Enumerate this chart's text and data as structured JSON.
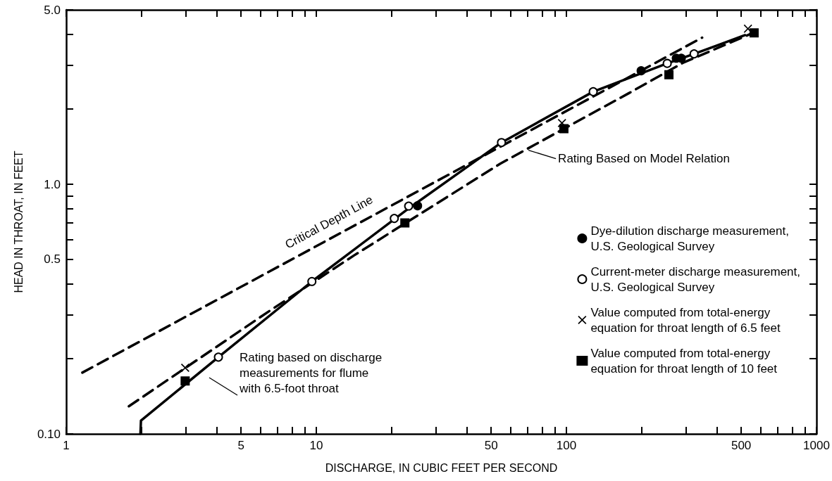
{
  "chart_data": {
    "type": "scatter",
    "xlabel": "DISCHARGE, IN CUBIC FEET PER SECOND",
    "ylabel": "HEAD IN THROAT, IN FEET",
    "log": "xy",
    "xlim": [
      1,
      1000
    ],
    "ylim": [
      0.1,
      5
    ],
    "xticks": [
      1,
      {
        "value": 2,
        "label": null
      },
      {
        "value": 3,
        "label": null
      },
      {
        "value": 4,
        "label": null
      },
      5,
      {
        "value": 6,
        "label": null
      },
      {
        "value": 7,
        "label": null
      },
      {
        "value": 8,
        "label": null
      },
      {
        "value": 9,
        "label": null
      },
      10,
      {
        "value": 20,
        "label": null
      },
      {
        "value": 30,
        "label": null
      },
      {
        "value": 40,
        "label": null
      },
      50,
      {
        "value": 60,
        "label": null
      },
      {
        "value": 70,
        "label": null
      },
      {
        "value": 80,
        "label": null
      },
      {
        "value": 90,
        "label": null
      },
      100,
      {
        "value": 200,
        "label": null
      },
      {
        "value": 300,
        "label": null
      },
      {
        "value": 400,
        "label": null
      },
      500,
      {
        "value": 600,
        "label": null
      },
      {
        "value": 700,
        "label": null
      },
      {
        "value": 800,
        "label": null
      },
      {
        "value": 900,
        "label": null
      },
      1000
    ],
    "yticks": [
      {
        "value": 0.1,
        "label": "0.10"
      },
      {
        "value": 0.2,
        "label": null
      },
      {
        "value": 0.3,
        "label": null
      },
      {
        "value": 0.4,
        "label": null
      },
      0.5,
      {
        "value": 0.6,
        "label": null
      },
      {
        "value": 0.7,
        "label": null
      },
      {
        "value": 0.8,
        "label": null
      },
      {
        "value": 0.9,
        "label": null
      },
      {
        "value": 1,
        "label": "1.0"
      },
      {
        "value": 2,
        "label": null
      },
      {
        "value": 3,
        "label": null
      },
      {
        "value": 4,
        "label": null
      },
      {
        "value": 5,
        "label": "5.0"
      }
    ],
    "grid": false,
    "legend": "right",
    "series": [
      {
        "type": "line",
        "color": "#000000",
        "line_style": "dashed",
        "x": [
          1.16,
          349
        ],
        "values": [
          0.176,
          3.87
        ]
      },
      {
        "type": "line",
        "color": "#000000",
        "line_style": "solid",
        "x": [
          1.98,
          1.99,
          4.06,
          9.6,
          23.4,
          55,
          128,
          253,
          324,
          518
        ],
        "values": [
          0.1,
          0.113,
          0.203,
          0.408,
          0.8,
          1.47,
          2.35,
          3.05,
          3.33,
          3.96
        ]
      },
      {
        "type": "line",
        "color": "#000000",
        "line_style": "dashed",
        "x": [
          1.78,
          6.5,
          14.2,
          54.4,
          178,
          293,
          560
        ],
        "values": [
          0.129,
          0.311,
          0.52,
          1.21,
          2.32,
          3.07,
          4.05
        ]
      },
      {
        "type": "scatter",
        "name": "Dye-dilution discharge measurement,\nU.S. Geological Survey",
        "color": "#000000",
        "marker": "circle",
        "x": [
          25.4,
          199,
          275,
          288
        ],
        "values": [
          0.82,
          2.85,
          3.2,
          3.2
        ]
      },
      {
        "type": "scatter",
        "name": "Current-meter discharge measurement,\nU.S. Geological Survey",
        "color": "#ffffff",
        "marker": "circle",
        "x": [
          4.06,
          9.6,
          20.5,
          23.4,
          55,
          128,
          253,
          324
        ],
        "values": [
          0.203,
          0.408,
          0.73,
          0.818,
          1.47,
          2.35,
          3.05,
          3.33
        ]
      },
      {
        "type": "scatter",
        "name": "Value computed from total-energy\nequation for throat length of 6.5 feet",
        "color": "#000000",
        "marker": "cross",
        "x": [
          2.99,
          96,
          532
        ],
        "values": [
          0.184,
          1.76,
          4.2
        ]
      },
      {
        "type": "scatter",
        "name": "Value computed from total-energy\nequation for throat length of 10 feet",
        "color": "#000000",
        "marker": "square",
        "x": [
          2.99,
          22.6,
          97.7,
          257,
          563
        ],
        "values": [
          0.163,
          0.7,
          1.67,
          2.75,
          4.04
        ]
      }
    ],
    "annotations": [
      "Critical Depth Line",
      {
        "text": "Rating Based on Model Relation",
        "x": 70.5,
        "y": 1.37
      },
      "Rating based on discharge\nmeasurements for flume\nwith 6.5-foot throat"
    ]
  }
}
